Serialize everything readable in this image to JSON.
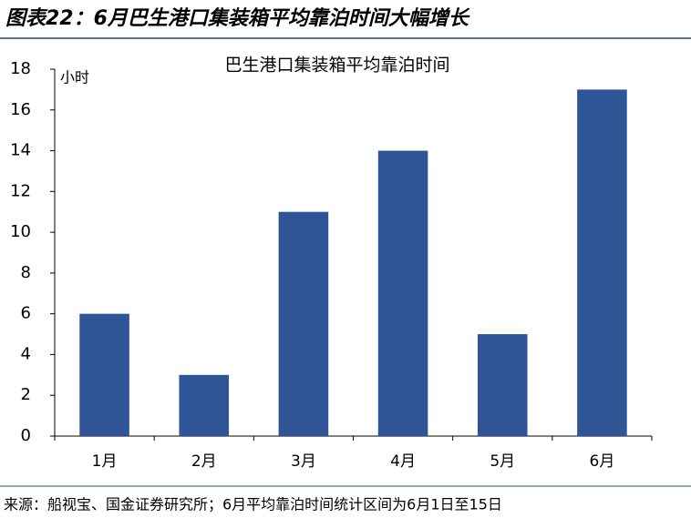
{
  "header": {
    "title": "图表22：6月巴生港口集装箱平均靠泊时间大幅增长"
  },
  "chart_data": {
    "type": "bar",
    "title": "巴生港口集装箱平均靠泊时间",
    "y_unit": "小时",
    "categories": [
      "1月",
      "2月",
      "3月",
      "4月",
      "5月",
      "6月"
    ],
    "values": [
      6,
      3,
      11,
      14,
      5,
      17
    ],
    "color": "#2f5597",
    "ylim": [
      0,
      18
    ],
    "yticks": [
      0,
      2,
      4,
      6,
      8,
      10,
      12,
      14,
      16,
      18
    ],
    "grid": false
  },
  "footer": {
    "source": "来源：船视宝、国金证券研究所；6月平均靠泊时间统计区间为6月1日至15日"
  }
}
